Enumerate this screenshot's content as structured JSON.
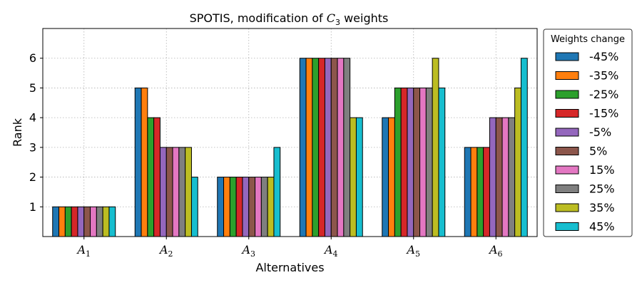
{
  "chart_data": {
    "type": "bar",
    "title_prefix": "SPOTIS, modification of ",
    "title_var": "C",
    "title_sub": "3",
    "title_suffix": " weights",
    "xlabel": "Alternatives",
    "ylabel": "Rank",
    "ylim": [
      0,
      7
    ],
    "yticks": [
      1,
      2,
      3,
      4,
      5,
      6
    ],
    "grid": true,
    "legend_title": "Weights change",
    "legend_position": "right",
    "categories": [
      {
        "var": "A",
        "sub": "1"
      },
      {
        "var": "A",
        "sub": "2"
      },
      {
        "var": "A",
        "sub": "3"
      },
      {
        "var": "A",
        "sub": "4"
      },
      {
        "var": "A",
        "sub": "5"
      },
      {
        "var": "A",
        "sub": "6"
      }
    ],
    "series": [
      {
        "name": "-45%",
        "color": "#1f77b4",
        "values": [
          1,
          5,
          2,
          6,
          4,
          3
        ]
      },
      {
        "name": "-35%",
        "color": "#ff7f0e",
        "values": [
          1,
          5,
          2,
          6,
          4,
          3
        ]
      },
      {
        "name": "-25%",
        "color": "#2ca02c",
        "values": [
          1,
          4,
          2,
          6,
          5,
          3
        ]
      },
      {
        "name": "-15%",
        "color": "#d62728",
        "values": [
          1,
          4,
          2,
          6,
          5,
          3
        ]
      },
      {
        "name": "-5%",
        "color": "#9467bd",
        "values": [
          1,
          3,
          2,
          6,
          5,
          4
        ]
      },
      {
        "name": "5%",
        "color": "#8c564b",
        "values": [
          1,
          3,
          2,
          6,
          5,
          4
        ]
      },
      {
        "name": "15%",
        "color": "#e377c2",
        "values": [
          1,
          3,
          2,
          6,
          5,
          4
        ]
      },
      {
        "name": "25%",
        "color": "#7f7f7f",
        "values": [
          1,
          3,
          2,
          6,
          5,
          4
        ]
      },
      {
        "name": "35%",
        "color": "#bcbd22",
        "values": [
          1,
          3,
          2,
          4,
          6,
          5
        ]
      },
      {
        "name": "45%",
        "color": "#17becf",
        "values": [
          1,
          2,
          3,
          4,
          5,
          6
        ]
      }
    ]
  }
}
